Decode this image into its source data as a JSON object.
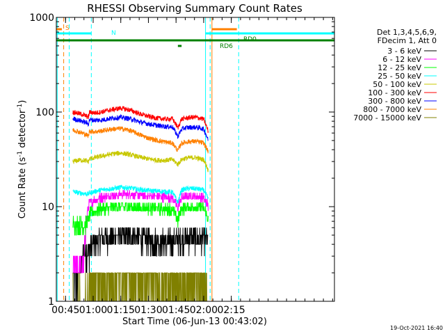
{
  "chart_data": {
    "type": "line",
    "title": "RHESSI Observing Summary Count Rates",
    "xlabel": "Start Time (06-Jun-13 00:43:02)",
    "ylabel_main": "Count Rate (s",
    "ylabel_sup1": "-1",
    "ylabel_mid": " detector",
    "ylabel_sup2": "-1",
    "ylabel_end": ")",
    "y_scale": "log",
    "ylim": [
      1,
      1000
    ],
    "x_unit": "minutes after 00:00 UT",
    "xlim": [
      40,
      191
    ],
    "x_ticks": [
      {
        "x": 45,
        "label": "00:45"
      },
      {
        "x": 60,
        "label": "01:00"
      },
      {
        "x": 75,
        "label": "01:15"
      },
      {
        "x": 90,
        "label": "01:30"
      },
      {
        "x": 105,
        "label": "01:45"
      },
      {
        "x": 120,
        "label": "02:00"
      },
      {
        "x": 135,
        "label": "02:15"
      }
    ],
    "y_ticks": [
      {
        "y": 1,
        "label": "1"
      },
      {
        "y": 10,
        "label": "10"
      },
      {
        "y": 100,
        "label": "100"
      },
      {
        "y": 1000,
        "label": "1000"
      }
    ],
    "legend_header": [
      "Det 1,3,4,5,6,9,",
      "FDecim 1, Att 0"
    ],
    "legend_position": "right",
    "series": [
      {
        "name": "3 - 6 keV",
        "color": "#000000",
        "x": [
          49,
          52,
          55,
          57.5,
          58,
          61,
          64,
          70,
          75,
          80,
          85,
          90,
          95,
          100,
          103,
          106,
          108,
          110,
          113,
          116,
          118,
          120,
          122.5
        ],
        "y": [
          1.8,
          1.8,
          3.3,
          3.5,
          3.8,
          4.3,
          4.6,
          4.8,
          5.0,
          4.9,
          4.7,
          4.5,
          4.4,
          4.3,
          4.4,
          4.6,
          4.6,
          4.7,
          4.7,
          4.7,
          4.6,
          4.6,
          4.2
        ]
      },
      {
        "name": "6 - 12 keV",
        "color": "#ff00ff",
        "x": [
          49,
          52,
          55,
          57.5,
          58,
          61,
          64,
          70,
          75,
          80,
          85,
          90,
          95,
          100,
          103,
          106,
          108,
          110,
          113,
          116,
          118,
          120,
          122.5
        ],
        "y": [
          2.5,
          2.4,
          2.4,
          10.5,
          11.0,
          11.8,
          12.5,
          13.0,
          13.5,
          13.6,
          13.3,
          13.0,
          12.8,
          12.6,
          12.5,
          9.5,
          12.4,
          12.8,
          12.9,
          12.8,
          12.6,
          12.5,
          10.0
        ]
      },
      {
        "name": "12 - 25 keV",
        "color": "#00ff00",
        "x": [
          49,
          52,
          55,
          57.5,
          58,
          61,
          64,
          70,
          75,
          80,
          85,
          90,
          95,
          100,
          103,
          106,
          108,
          110,
          113,
          116,
          118,
          120,
          122.5
        ],
        "y": [
          6.5,
          6.6,
          6.4,
          7.0,
          8.5,
          9.0,
          9.5,
          9.8,
          10.0,
          10.0,
          9.8,
          9.7,
          9.6,
          9.5,
          9.5,
          7.0,
          9.5,
          9.8,
          9.9,
          9.9,
          9.8,
          9.7,
          7.5
        ]
      },
      {
        "name": "25 - 50 keV",
        "color": "#00ffff",
        "x": [
          49,
          52,
          55,
          57.5,
          58,
          61,
          64,
          70,
          75,
          80,
          85,
          90,
          95,
          100,
          103,
          106,
          108,
          110,
          113,
          116,
          118,
          120,
          122.5
        ],
        "y": [
          14.5,
          14.0,
          13.8,
          13.6,
          14.0,
          14.5,
          15.0,
          15.5,
          16.0,
          15.8,
          15.2,
          14.8,
          14.6,
          14.4,
          14.3,
          11.0,
          15.0,
          15.4,
          15.6,
          15.5,
          15.2,
          15.0,
          12.0
        ]
      },
      {
        "name": "50 - 100 keV",
        "color": "#c8c800",
        "x": [
          49,
          52,
          55,
          57.5,
          58,
          61,
          64,
          70,
          75,
          80,
          85,
          90,
          95,
          100,
          103,
          106,
          108,
          110,
          113,
          116,
          118,
          120,
          122.5
        ],
        "y": [
          30,
          31,
          31,
          30,
          32,
          33,
          34,
          36,
          37,
          35.5,
          33.5,
          32,
          31,
          31,
          31.5,
          28,
          31.5,
          32.5,
          33,
          33,
          32,
          31.5,
          24
        ]
      },
      {
        "name": "100 - 300 keV",
        "color": "#ff0000",
        "x": [
          49,
          52,
          55,
          57.5,
          58,
          61,
          64,
          70,
          75,
          80,
          85,
          90,
          95,
          100,
          103,
          106,
          108,
          110,
          113,
          116,
          118,
          120,
          122.5
        ],
        "y": [
          100,
          97,
          93,
          88,
          100,
          98,
          100,
          106,
          110,
          105,
          96,
          90,
          86,
          84,
          85,
          68,
          84,
          86,
          88,
          88,
          86,
          84,
          62
        ]
      },
      {
        "name": "300 - 800 keV",
        "color": "#0000ff",
        "x": [
          49,
          52,
          55,
          57.5,
          58,
          61,
          64,
          70,
          75,
          80,
          85,
          90,
          95,
          100,
          103,
          106,
          108,
          110,
          113,
          116,
          118,
          120,
          122.5
        ],
        "y": [
          85,
          82,
          79,
          75,
          83,
          82,
          82,
          86,
          88,
          85,
          79,
          75,
          72,
          70,
          70,
          55,
          66,
          68,
          69,
          69,
          68,
          66,
          50
        ]
      },
      {
        "name": "800 - 7000 keV",
        "color": "#ff8000",
        "x": [
          49,
          52,
          55,
          57.5,
          58,
          61,
          64,
          70,
          75,
          80,
          85,
          90,
          95,
          100,
          103,
          106,
          108,
          110,
          113,
          116,
          118,
          120,
          122.5
        ],
        "y": [
          65,
          62,
          59,
          56,
          63,
          62,
          63,
          66,
          67,
          64,
          58,
          53,
          50,
          48,
          47,
          39,
          47,
          48,
          49,
          49,
          48,
          47,
          38
        ]
      },
      {
        "name": "7000 - 15000 keV",
        "color": "#808000",
        "x": [
          49,
          52,
          55,
          57.5,
          58,
          61,
          64,
          70,
          75,
          80,
          85,
          90,
          95,
          100,
          103,
          106,
          108,
          110,
          113,
          116,
          118,
          120,
          122.5
        ],
        "y": [
          1.0,
          1.0,
          1.0,
          1.0,
          1.6,
          1.7,
          1.6,
          1.7,
          1.6,
          1.7,
          1.6,
          1.7,
          1.6,
          1.7,
          1.6,
          1.5,
          1.6,
          1.7,
          1.6,
          1.7,
          1.6,
          1.7,
          1.0
        ]
      }
    ],
    "annotations": {
      "saa_label": "S",
      "night_label": "N",
      "rd0_label": "RD0",
      "rd6_label": "RD6",
      "timestamp": "19-Oct-2021 16:40"
    },
    "flag_colors": {
      "saa": "#ff8000",
      "night": "#00ffff",
      "decimation": "#008000"
    }
  }
}
